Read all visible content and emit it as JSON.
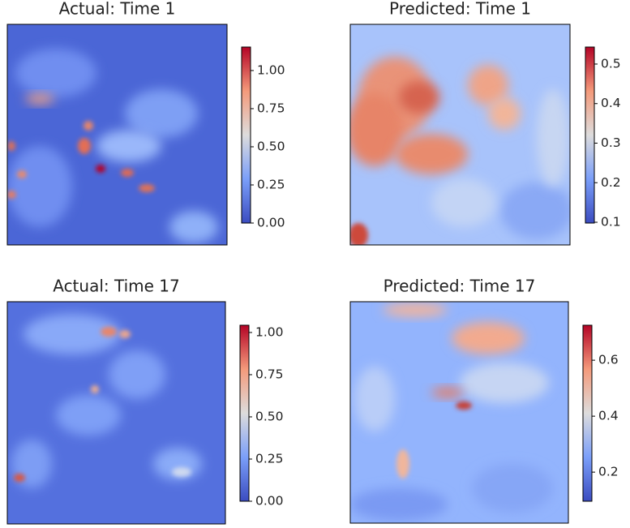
{
  "chart_data": [
    {
      "type": "heatmap",
      "title": "Actual: Time 1",
      "colormap": "coolwarm",
      "clim": [
        0,
        1.154
      ],
      "cticks": [
        {
          "value": 0,
          "label": "0.00"
        },
        {
          "value": 0.25,
          "label": "0.25"
        },
        {
          "value": 0.5,
          "label": "0.50"
        },
        {
          "value": 0.75,
          "label": "0.75"
        },
        {
          "value": 1,
          "label": "1.00"
        }
      ]
    },
    {
      "type": "heatmap",
      "title": "Predicted: Time 1",
      "colormap": "coolwarm",
      "clim": [
        0.098,
        0.543
      ],
      "cticks": [
        0.1,
        0.2,
        0.3,
        0.4,
        0.5
      ]
    },
    {
      "type": "heatmap",
      "title": "Actual: Time 17",
      "colormap": "coolwarm",
      "clim": [
        0,
        1.043
      ],
      "cticks": [
        {
          "value": 0,
          "label": "0.00"
        },
        {
          "value": 0.25,
          "label": "0.25"
        },
        {
          "value": 0.5,
          "label": "0.50"
        },
        {
          "value": 0.75,
          "label": "0.75"
        },
        {
          "value": 1,
          "label": "1.00"
        }
      ]
    },
    {
      "type": "heatmap",
      "title": "Predicted: Time 17",
      "colormap": "coolwarm",
      "clim": [
        0.096,
        0.725
      ],
      "cticks": [
        0.2,
        0.4,
        0.6
      ]
    }
  ]
}
